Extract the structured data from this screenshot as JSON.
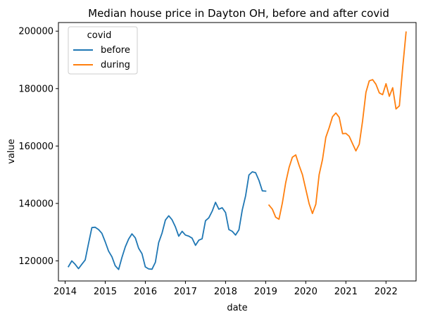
{
  "chart_data": {
    "type": "line",
    "title": "Median house price in Dayton OH, before and after covid",
    "xlabel": "date",
    "ylabel": "value",
    "x_ticks": [
      "2014",
      "2015",
      "2016",
      "2017",
      "2018",
      "2019",
      "2020",
      "2021",
      "2022"
    ],
    "y_ticks": [
      "120000",
      "140000",
      "160000",
      "180000",
      "200000"
    ],
    "xlim": [
      "2013-11-01",
      "2022-10-01"
    ],
    "ylim": [
      113000,
      203000
    ],
    "legend": {
      "title": "covid",
      "position": "top-left"
    },
    "series": [
      {
        "name": "before",
        "color": "#1f77b4",
        "points": [
          [
            "2014-02",
            118000
          ],
          [
            "2014-03",
            120000
          ],
          [
            "2014-04",
            118800
          ],
          [
            "2014-05",
            117300
          ],
          [
            "2014-06",
            118800
          ],
          [
            "2014-07",
            120300
          ],
          [
            "2014-08",
            126000
          ],
          [
            "2014-09",
            131600
          ],
          [
            "2014-10",
            131700
          ],
          [
            "2014-11",
            130900
          ],
          [
            "2014-12",
            129600
          ],
          [
            "2015-01",
            126600
          ],
          [
            "2015-02",
            123400
          ],
          [
            "2015-03",
            121400
          ],
          [
            "2015-04",
            118300
          ],
          [
            "2015-05",
            117000
          ],
          [
            "2015-06",
            121200
          ],
          [
            "2015-07",
            124900
          ],
          [
            "2015-08",
            127600
          ],
          [
            "2015-09",
            129400
          ],
          [
            "2015-10",
            128000
          ],
          [
            "2015-11",
            124400
          ],
          [
            "2015-12",
            122500
          ],
          [
            "2016-01",
            117900
          ],
          [
            "2016-02",
            117200
          ],
          [
            "2016-03",
            117100
          ],
          [
            "2016-04",
            119500
          ],
          [
            "2016-05",
            126400
          ],
          [
            "2016-06",
            129700
          ],
          [
            "2016-07",
            134200
          ],
          [
            "2016-08",
            135700
          ],
          [
            "2016-09",
            134300
          ],
          [
            "2016-10",
            131800
          ],
          [
            "2016-11",
            128600
          ],
          [
            "2016-12",
            130300
          ],
          [
            "2017-01",
            129000
          ],
          [
            "2017-02",
            128600
          ],
          [
            "2017-03",
            127900
          ],
          [
            "2017-04",
            125400
          ],
          [
            "2017-05",
            127200
          ],
          [
            "2017-06",
            127700
          ],
          [
            "2017-07",
            134000
          ],
          [
            "2017-08",
            135000
          ],
          [
            "2017-09",
            137300
          ],
          [
            "2017-10",
            140400
          ],
          [
            "2017-11",
            138000
          ],
          [
            "2017-12",
            138500
          ],
          [
            "2018-01",
            136800
          ],
          [
            "2018-02",
            130900
          ],
          [
            "2018-03",
            130300
          ],
          [
            "2018-04",
            129000
          ],
          [
            "2018-05",
            130800
          ],
          [
            "2018-06",
            137700
          ],
          [
            "2018-07",
            142700
          ],
          [
            "2018-08",
            149900
          ],
          [
            "2018-09",
            151000
          ],
          [
            "2018-10",
            150700
          ],
          [
            "2018-11",
            148000
          ],
          [
            "2018-12",
            144400
          ],
          [
            "2019-01",
            144300
          ]
        ]
      },
      {
        "name": "during",
        "color": "#ff7f0e",
        "points": [
          [
            "2019-02",
            139400
          ],
          [
            "2019-03",
            138000
          ],
          [
            "2019-04",
            135200
          ],
          [
            "2019-05",
            134500
          ],
          [
            "2019-06",
            140200
          ],
          [
            "2019-07",
            147200
          ],
          [
            "2019-08",
            152500
          ],
          [
            "2019-09",
            156100
          ],
          [
            "2019-10",
            156900
          ],
          [
            "2019-11",
            153300
          ],
          [
            "2019-12",
            150000
          ],
          [
            "2020-01",
            145000
          ],
          [
            "2020-02",
            139900
          ],
          [
            "2020-03",
            136500
          ],
          [
            "2020-04",
            139700
          ],
          [
            "2020-05",
            150000
          ],
          [
            "2020-06",
            155300
          ],
          [
            "2020-07",
            163000
          ],
          [
            "2020-08",
            166400
          ],
          [
            "2020-09",
            170200
          ],
          [
            "2020-10",
            171500
          ],
          [
            "2020-11",
            170000
          ],
          [
            "2020-12",
            164300
          ],
          [
            "2021-01",
            164400
          ],
          [
            "2021-02",
            163400
          ],
          [
            "2021-03",
            160800
          ],
          [
            "2021-04",
            158300
          ],
          [
            "2021-05",
            160600
          ],
          [
            "2021-06",
            168700
          ],
          [
            "2021-07",
            178700
          ],
          [
            "2021-08",
            182700
          ],
          [
            "2021-09",
            183100
          ],
          [
            "2021-10",
            181500
          ],
          [
            "2021-11",
            178500
          ],
          [
            "2021-12",
            177900
          ],
          [
            "2022-01",
            181700
          ],
          [
            "2022-02",
            177300
          ],
          [
            "2022-03",
            180300
          ],
          [
            "2022-04",
            172900
          ],
          [
            "2022-05",
            174000
          ],
          [
            "2022-06",
            187300
          ],
          [
            "2022-07",
            199700
          ]
        ]
      }
    ]
  }
}
